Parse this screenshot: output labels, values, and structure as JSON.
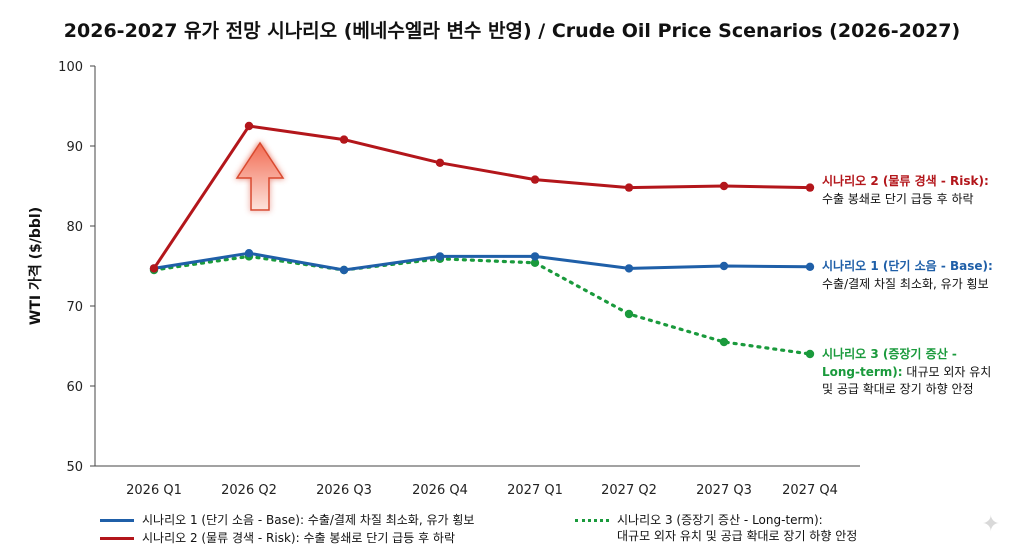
{
  "title": "2026-2027 유가 전망 시나리오 (베네수엘라 변수 반영) / Crude Oil Price Scenarios (2026-2027)",
  "chart_data": {
    "type": "line",
    "categories": [
      "2026 Q1",
      "2026 Q2",
      "2026 Q3",
      "2026 Q4",
      "2027 Q1",
      "2027 Q2",
      "2027 Q3",
      "2027 Q4"
    ],
    "ylabel": "WTI 가격 ($/bbl)",
    "xlabel": "",
    "ylim": [
      50,
      100
    ],
    "yticks": [
      50,
      60,
      70,
      80,
      90,
      100
    ],
    "grid": false,
    "legend_position": "bottom",
    "series": [
      {
        "key": "s1",
        "name": "시나리오 1 (단기 소음 - Base): 수출/결제 차질 최소화, 유가 횡보",
        "style": "solid",
        "color": "#1f5fa8",
        "values": [
          74.7,
          76.6,
          74.5,
          76.2,
          76.2,
          74.7,
          75.0,
          74.9
        ]
      },
      {
        "key": "s2",
        "name": "시나리오 2 (물류 경색 - Risk): 수출 봉쇄로 단기 급등 후 하락",
        "style": "solid",
        "color": "#b3161b",
        "values": [
          74.7,
          92.5,
          90.8,
          87.9,
          85.8,
          84.8,
          85.0,
          84.8
        ]
      },
      {
        "key": "s3",
        "name_lines": [
          "시나리오 3 (증장기 증산 - Long-term):",
          "대규모 외자 유치 및 공급 확대로 장기 하향 안정"
        ],
        "style": "dotted",
        "color": "#1a9a3c",
        "values": [
          74.5,
          76.2,
          74.5,
          75.9,
          75.4,
          69.0,
          65.5,
          64.0
        ]
      }
    ],
    "annotations": [
      {
        "series": "s2",
        "title": "시나리오 2 (물류 경색 - Risk):",
        "body": [
          "수출 봉쇄로 단기 급등 후 하락"
        ]
      },
      {
        "series": "s1",
        "title": "시나리오 1 (단기 소음 - Base):",
        "body": [
          "수출/결제 차질 최소화, 유가 횡보"
        ]
      },
      {
        "series": "s3",
        "title": "시나리오 3 (증장기 증산 -",
        "title2": "Long-term):",
        "title2_rest": " 대규모 외자 유치",
        "body": [
          "및 공급 확대로 장기 하향 안정"
        ]
      }
    ],
    "arrow": {
      "category": "2026 Q2",
      "direction": "up"
    }
  },
  "icons": {
    "sparkle": "sparkle-icon"
  }
}
